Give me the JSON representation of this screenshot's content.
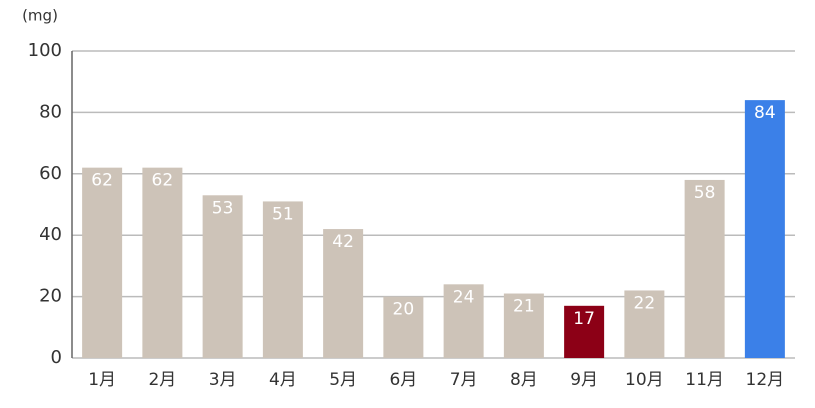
{
  "chart_data": {
    "type": "bar",
    "ylabel": "(mg)",
    "categories": [
      "1月",
      "2月",
      "3月",
      "4月",
      "5月",
      "6月",
      "7月",
      "8月",
      "9月",
      "10月",
      "11月",
      "12月"
    ],
    "values": [
      62,
      62,
      53,
      51,
      42,
      20,
      24,
      21,
      17,
      22,
      58,
      84
    ],
    "colors": [
      "#cdc3b8",
      "#cdc3b8",
      "#cdc3b8",
      "#cdc3b8",
      "#cdc3b8",
      "#cdc3b8",
      "#cdc3b8",
      "#cdc3b8",
      "#8c0016",
      "#cdc3b8",
      "#cdc3b8",
      "#3b80e8"
    ],
    "ylim": [
      0,
      100
    ],
    "yticks": [
      0,
      20,
      40,
      60,
      80,
      100
    ],
    "grid": true
  }
}
